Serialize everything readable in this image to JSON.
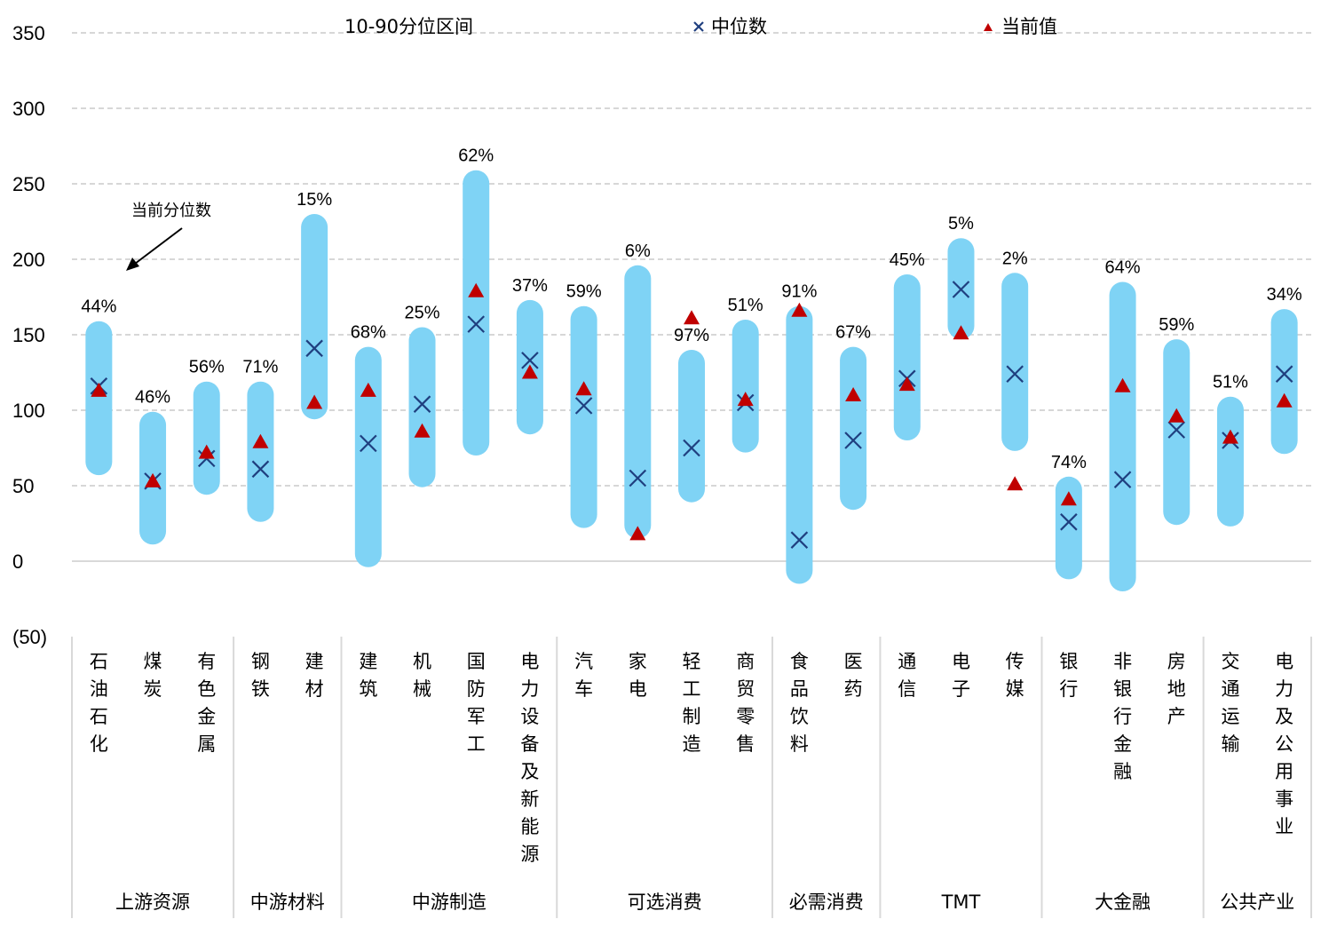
{
  "chart_data": {
    "type": "range-dot",
    "legend": {
      "range": "10-90分位区间",
      "median": "中位数",
      "current": "当前值"
    },
    "annotation": "当前分位数",
    "ylim": [
      -50,
      350
    ],
    "yticks": [
      "(50)",
      "0",
      "50",
      "100",
      "150",
      "200",
      "250",
      "300",
      "350"
    ],
    "ytick_values": [
      -50,
      0,
      50,
      100,
      150,
      200,
      250,
      300,
      350
    ],
    "grid": true,
    "colors": {
      "range": "#7FD3F5",
      "median": "#1F3F7F",
      "current": "#C00000",
      "grid": "#BFBFBF",
      "divider": "#D9D9D9"
    },
    "categories": [
      "石油石化",
      "煤炭",
      "有色金属",
      "钢铁",
      "建材",
      "建筑",
      "机械",
      "国防军工",
      "电力设备及新能源",
      "汽车",
      "家电",
      "轻工制造",
      "商贸零售",
      "食品饮料",
      "医药",
      "通信",
      "电子",
      "传媒",
      "银行",
      "非银行金融",
      "房地产",
      "交通运输",
      "电力及公用事业"
    ],
    "range_low": [
      57,
      11,
      44,
      26,
      94,
      -4,
      49,
      70,
      84,
      22,
      15,
      39,
      72,
      -15,
      34,
      80,
      147,
      73,
      -12,
      -20,
      24,
      23,
      71
    ],
    "range_high": [
      159,
      99,
      119,
      119,
      230,
      142,
      155,
      259,
      173,
      169,
      196,
      140,
      160,
      169,
      142,
      190,
      214,
      191,
      56,
      185,
      147,
      109,
      167
    ],
    "median": [
      116,
      53,
      68,
      61,
      141,
      78,
      104,
      157,
      133,
      103,
      55,
      75,
      105,
      14,
      80,
      121,
      180,
      124,
      26,
      54,
      87,
      80,
      124
    ],
    "current": [
      113,
      53,
      72,
      79,
      105,
      113,
      86,
      179,
      125,
      114,
      18,
      161,
      107,
      166,
      110,
      117,
      151,
      51,
      41,
      116,
      96,
      82,
      106
    ],
    "percentile_labels": [
      "44%",
      "46%",
      "56%",
      "71%",
      "15%",
      "68%",
      "25%",
      "62%",
      "37%",
      "59%",
      "6%",
      "97%",
      "51%",
      "91%",
      "67%",
      "45%",
      "5%",
      "2%",
      "74%",
      "64%",
      "59%",
      "51%",
      "34%"
    ],
    "groups": [
      {
        "name": "上游资源",
        "count": 3
      },
      {
        "name": "中游材料",
        "count": 2
      },
      {
        "name": "中游制造",
        "count": 4
      },
      {
        "name": "可选消费",
        "count": 4
      },
      {
        "name": "必需消费",
        "count": 2
      },
      {
        "name": "TMT",
        "count": 3
      },
      {
        "name": "大金融",
        "count": 3
      },
      {
        "name": "公共产业",
        "count": 2
      }
    ]
  }
}
